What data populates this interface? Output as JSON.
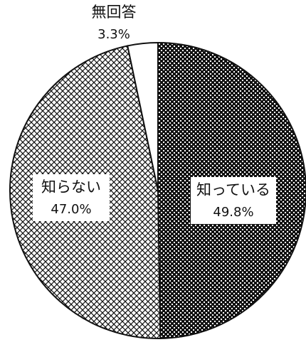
{
  "chart_data": {
    "type": "pie",
    "start_angle_deg": 0,
    "direction": "clockwise",
    "slices": [
      {
        "label": "知っている",
        "value": 49.8,
        "value_text": "49.8%",
        "pattern": "dots-dark",
        "fill_color": "#111111",
        "label_style": "boxed"
      },
      {
        "label": "知らない",
        "value": 47.0,
        "value_text": "47.0%",
        "pattern": "crosshatch",
        "fill_color": "#ffffff",
        "label_style": "boxed"
      },
      {
        "label": "無回答",
        "value": 3.3,
        "value_text": "3.3%",
        "pattern": "plain-white",
        "fill_color": "#ffffff",
        "label_style": "outside"
      }
    ]
  }
}
